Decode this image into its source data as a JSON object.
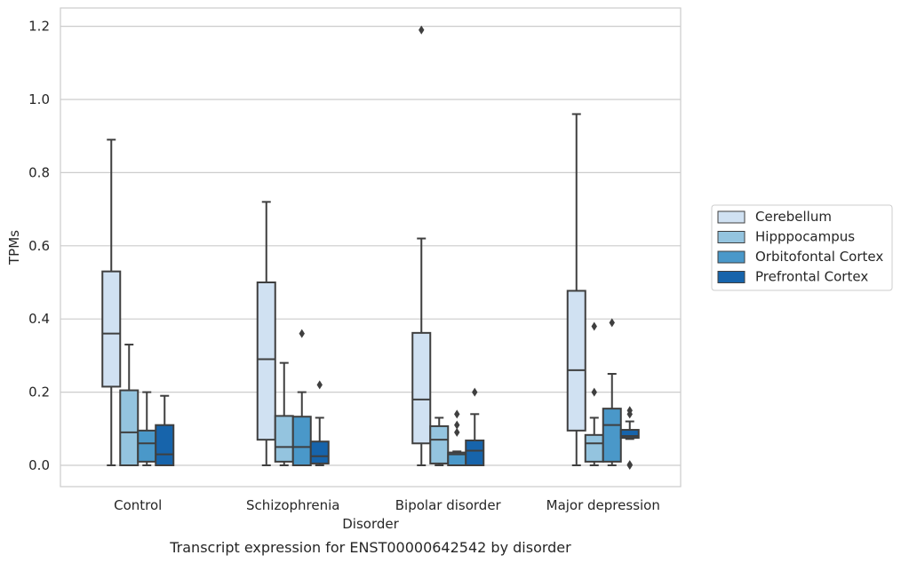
{
  "chart_data": {
    "type": "boxplot",
    "title": "",
    "caption": "Transcript expression for ENST00000642542 by disorder",
    "xlabel": "Disorder",
    "ylabel": "TPMs",
    "ylim": [
      -0.057,
      1.25
    ],
    "yticks": [
      0.0,
      0.2,
      0.4,
      0.6,
      0.8,
      1.0,
      1.2
    ],
    "ytick_labels": [
      "0.0",
      "0.2",
      "0.4",
      "0.6",
      "0.8",
      "1.0",
      "1.2"
    ],
    "grid": true,
    "legend_position": "right",
    "categories": [
      "Control",
      "Schizophrenia",
      "Bipolar disorder",
      "Major depression"
    ],
    "series": [
      {
        "name": "Cerebellum",
        "color": "#d0e1f2",
        "boxes": [
          {
            "whisker_low": 0.0,
            "q1": 0.215,
            "median": 0.36,
            "q3": 0.53,
            "whisker_high": 0.89,
            "outliers": []
          },
          {
            "whisker_low": 0.0,
            "q1": 0.07,
            "median": 0.29,
            "q3": 0.5,
            "whisker_high": 0.72,
            "outliers": []
          },
          {
            "whisker_low": 0.0,
            "q1": 0.06,
            "median": 0.18,
            "q3": 0.362,
            "whisker_high": 0.62,
            "outliers": [
              1.19
            ]
          },
          {
            "whisker_low": 0.0,
            "q1": 0.095,
            "median": 0.26,
            "q3": 0.477,
            "whisker_high": 0.96,
            "outliers": []
          }
        ]
      },
      {
        "name": "Hipppocampus",
        "color": "#94c4df",
        "boxes": [
          {
            "whisker_low": 0.0,
            "q1": 0.0,
            "median": 0.09,
            "q3": 0.205,
            "whisker_high": 0.33,
            "outliers": []
          },
          {
            "whisker_low": 0.0,
            "q1": 0.01,
            "median": 0.05,
            "q3": 0.135,
            "whisker_high": 0.28,
            "outliers": []
          },
          {
            "whisker_low": 0.0,
            "q1": 0.005,
            "median": 0.07,
            "q3": 0.107,
            "whisker_high": 0.13,
            "outliers": []
          },
          {
            "whisker_low": 0.0,
            "q1": 0.01,
            "median": 0.06,
            "q3": 0.083,
            "whisker_high": 0.13,
            "outliers": [
              0.2,
              0.38
            ]
          }
        ]
      },
      {
        "name": "Orbitofontal Cortex",
        "color": "#4a98c9",
        "boxes": [
          {
            "whisker_low": 0.0,
            "q1": 0.01,
            "median": 0.06,
            "q3": 0.095,
            "whisker_high": 0.2,
            "outliers": []
          },
          {
            "whisker_low": 0.0,
            "q1": 0.0,
            "median": 0.05,
            "q3": 0.133,
            "whisker_high": 0.2,
            "outliers": [
              0.36
            ]
          },
          {
            "whisker_low": 0.0,
            "q1": 0.0,
            "median": 0.03,
            "q3": 0.035,
            "whisker_high": 0.038,
            "outliers": [
              0.09,
              0.11,
              0.14
            ]
          },
          {
            "whisker_low": 0.0,
            "q1": 0.01,
            "median": 0.11,
            "q3": 0.155,
            "whisker_high": 0.25,
            "outliers": [
              0.39
            ]
          }
        ]
      },
      {
        "name": "Prefrontal Cortex",
        "color": "#1764ab",
        "boxes": [
          {
            "whisker_low": 0.0,
            "q1": 0.0,
            "median": 0.03,
            "q3": 0.11,
            "whisker_high": 0.19,
            "outliers": []
          },
          {
            "whisker_low": 0.0,
            "q1": 0.005,
            "median": 0.025,
            "q3": 0.065,
            "whisker_high": 0.13,
            "outliers": [
              0.22
            ]
          },
          {
            "whisker_low": 0.0,
            "q1": 0.0,
            "median": 0.04,
            "q3": 0.068,
            "whisker_high": 0.14,
            "outliers": [
              0.2
            ]
          },
          {
            "whisker_low": 0.072,
            "q1": 0.075,
            "median": 0.08,
            "q3": 0.097,
            "whisker_high": 0.12,
            "outliers": [
              0.0,
              0.002,
              0.14,
              0.15
            ]
          }
        ]
      }
    ]
  }
}
